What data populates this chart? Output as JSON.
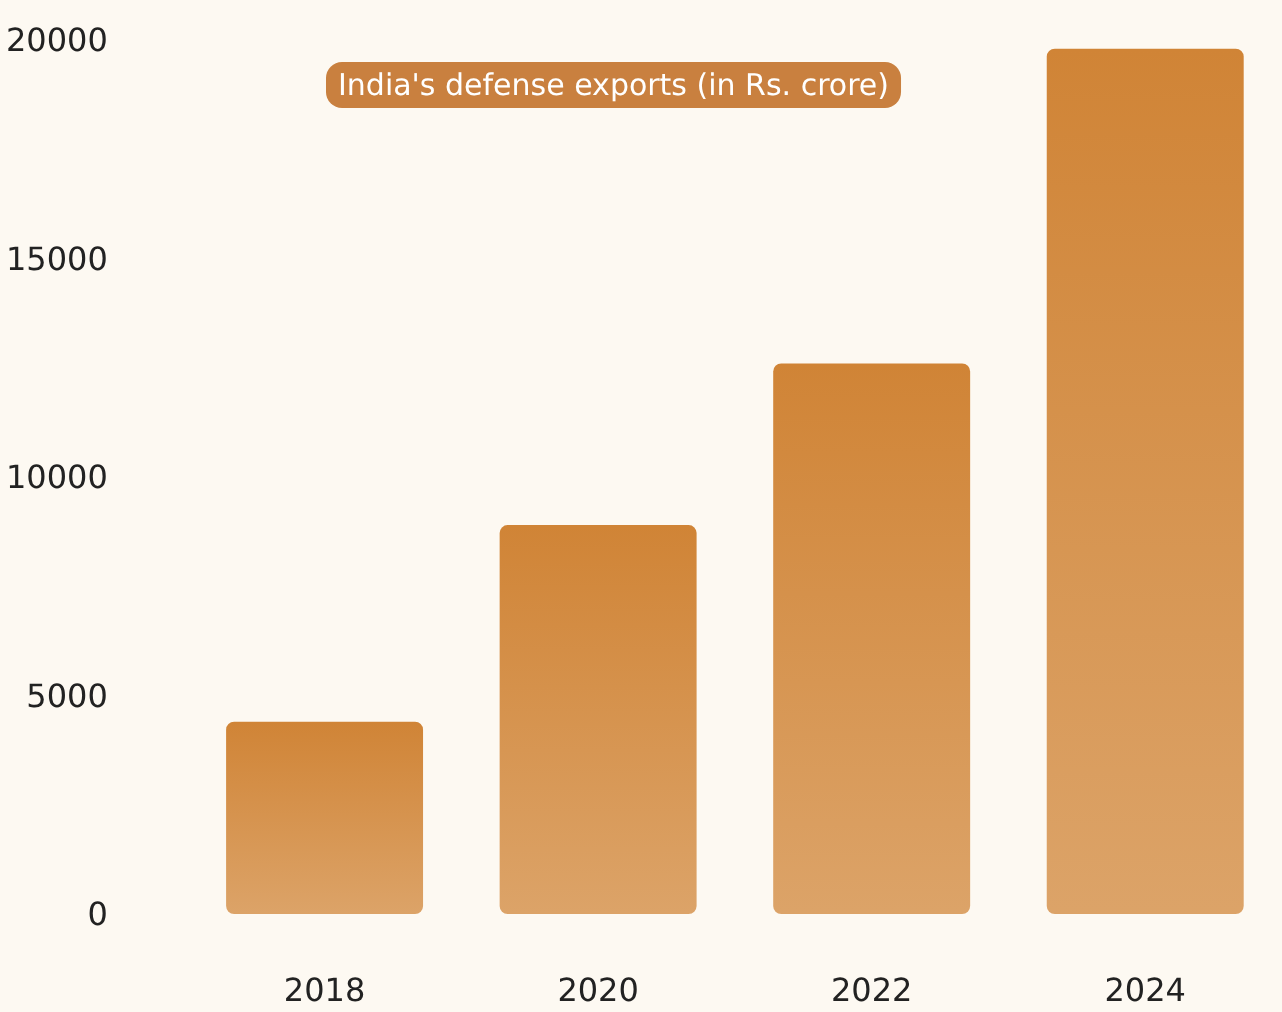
{
  "chart_data": {
    "type": "bar",
    "title": "India's defense exports (in Rs. crore)",
    "categories": [
      "2018",
      "2020",
      "2022",
      "2024"
    ],
    "values": [
      4400,
      8900,
      12600,
      19800
    ],
    "color": "#d08436",
    "ylim": [
      0,
      20000
    ],
    "yticks": [
      0,
      5000,
      10000,
      15000,
      20000
    ],
    "grid": false
  }
}
